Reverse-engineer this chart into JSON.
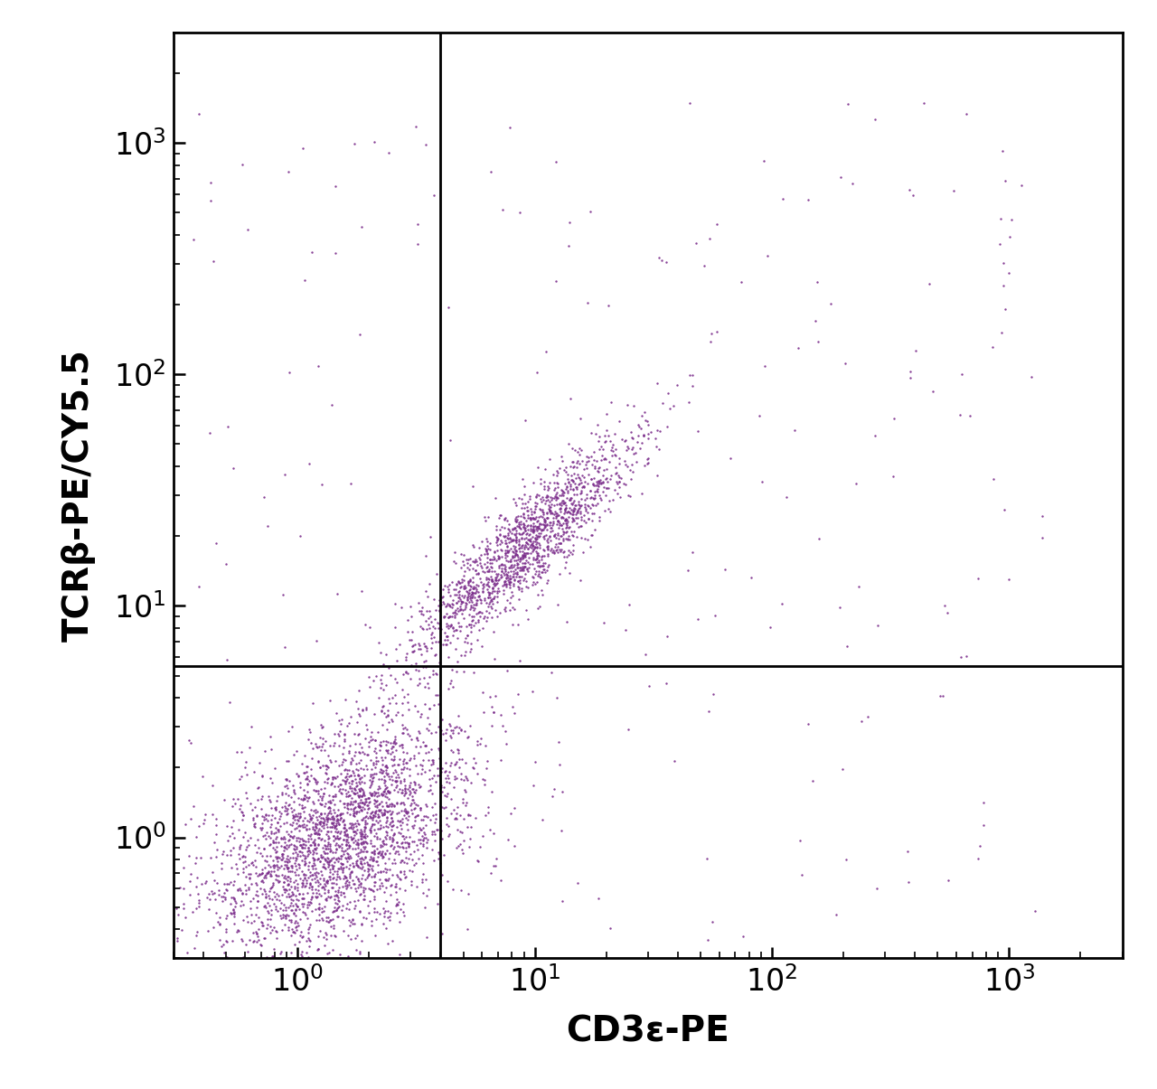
{
  "xlabel": "CD3ε-PE",
  "ylabel": "TCRβ-PE/CY5.5",
  "dot_color": "#7B2D8B",
  "background_color": "#ffffff",
  "xmin": 0.3,
  "xmax": 3000,
  "ymin": 0.3,
  "ymax": 3000,
  "gate_x": 4.0,
  "gate_y": 5.5,
  "xlabel_fontsize": 28,
  "ylabel_fontsize": 28,
  "tick_fontsize": 24,
  "dot_size": 3.0,
  "dot_alpha": 0.9,
  "n_cluster1": 2800,
  "n_cluster2": 1600,
  "n_scatter": 250,
  "seed": 42
}
